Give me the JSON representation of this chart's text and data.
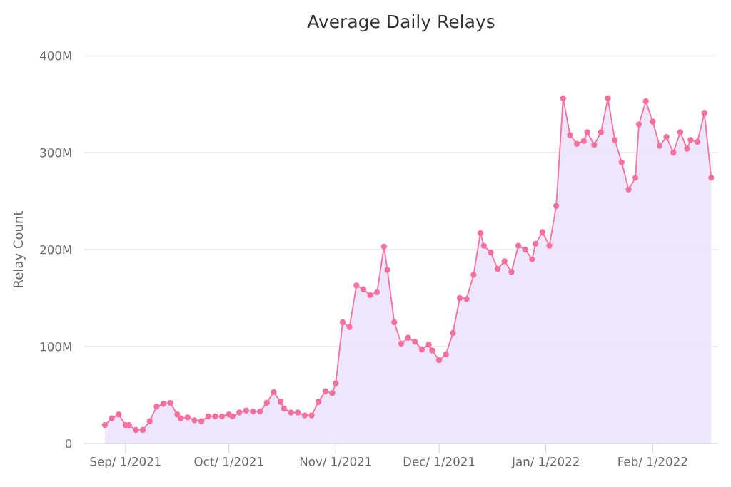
{
  "chart_data": {
    "type": "area",
    "title": "Average Daily Relays",
    "ylabel": "Relay Count",
    "x": [
      "2021-08-26",
      "2021-08-28",
      "2021-08-30",
      "2021-09-01",
      "2021-09-02",
      "2021-09-04",
      "2021-09-06",
      "2021-09-08",
      "2021-09-10",
      "2021-09-12",
      "2021-09-14",
      "2021-09-16",
      "2021-09-17",
      "2021-09-19",
      "2021-09-21",
      "2021-09-23",
      "2021-09-25",
      "2021-09-27",
      "2021-09-29",
      "2021-10-01",
      "2021-10-02",
      "2021-10-04",
      "2021-10-06",
      "2021-10-08",
      "2021-10-10",
      "2021-10-12",
      "2021-10-14",
      "2021-10-16",
      "2021-10-17",
      "2021-10-19",
      "2021-10-21",
      "2021-10-23",
      "2021-10-25",
      "2021-10-27",
      "2021-10-29",
      "2021-10-31",
      "2021-11-01",
      "2021-11-03",
      "2021-11-05",
      "2021-11-07",
      "2021-11-09",
      "2021-11-11",
      "2021-11-13",
      "2021-11-15",
      "2021-11-16",
      "2021-11-18",
      "2021-11-20",
      "2021-11-22",
      "2021-11-24",
      "2021-11-26",
      "2021-11-28",
      "2021-11-29",
      "2021-12-01",
      "2021-12-03",
      "2021-12-05",
      "2021-12-07",
      "2021-12-09",
      "2021-12-11",
      "2021-12-13",
      "2021-12-14",
      "2021-12-16",
      "2021-12-18",
      "2021-12-20",
      "2021-12-22",
      "2021-12-24",
      "2021-12-26",
      "2021-12-28",
      "2021-12-29",
      "2021-12-31",
      "2022-01-02",
      "2022-01-04",
      "2022-01-06",
      "2022-01-08",
      "2022-01-10",
      "2022-01-12",
      "2022-01-13",
      "2022-01-15",
      "2022-01-17",
      "2022-01-19",
      "2022-01-21",
      "2022-01-23",
      "2022-01-25",
      "2022-01-27",
      "2022-01-28",
      "2022-01-30",
      "2022-02-01",
      "2022-02-03",
      "2022-02-05",
      "2022-02-07",
      "2022-02-09",
      "2022-02-11",
      "2022-02-12",
      "2022-02-14",
      "2022-02-16",
      "2022-02-18"
    ],
    "series": [
      {
        "color": "#f5709f",
        "values": [
          19000000,
          26000000,
          30000000,
          19000000,
          19000000,
          14000000,
          14000000,
          23000000,
          38000000,
          41000000,
          42000000,
          30000000,
          26000000,
          27000000,
          24000000,
          23000000,
          28000000,
          28000000,
          28000000,
          30000000,
          28000000,
          32000000,
          34000000,
          33000000,
          33000000,
          42000000,
          53000000,
          43000000,
          36000000,
          32000000,
          32000000,
          29000000,
          29000000,
          43000000,
          54000000,
          52000000,
          62000000,
          125000000,
          120000000,
          163000000,
          159000000,
          153000000,
          156000000,
          203000000,
          179000000,
          125000000,
          103000000,
          109000000,
          105000000,
          97000000,
          102000000,
          96000000,
          86000000,
          92000000,
          114000000,
          150000000,
          149000000,
          174000000,
          217000000,
          204000000,
          197000000,
          180000000,
          188000000,
          177000000,
          204000000,
          200000000,
          190000000,
          206000000,
          218000000,
          204000000,
          245000000,
          356000000,
          318000000,
          309000000,
          312000000,
          321000000,
          308000000,
          321000000,
          356000000,
          313000000,
          290000000,
          262000000,
          274000000,
          329000000,
          353000000,
          332000000,
          307000000,
          316000000,
          300000000,
          321000000,
          304000000,
          313000000,
          311000000,
          341000000,
          274000000
        ]
      }
    ],
    "xlim": [
      "2021-08-20",
      "2022-02-20"
    ],
    "xticks": [
      {
        "value": "2021-09-01",
        "label": "Sep/ 1/2021"
      },
      {
        "value": "2021-10-01",
        "label": "Oct/ 1/2021"
      },
      {
        "value": "2021-11-01",
        "label": "Nov/ 1/2021"
      },
      {
        "value": "2021-12-01",
        "label": "Dec/ 1/2021"
      },
      {
        "value": "2022-01-01",
        "label": "Jan/ 1/2022"
      },
      {
        "value": "2022-02-01",
        "label": "Feb/ 1/2022"
      }
    ],
    "ylim": [
      0,
      400000000
    ],
    "yticks": [
      {
        "value": 0,
        "label": "0"
      },
      {
        "value": 100000000,
        "label": "100M"
      },
      {
        "value": 200000000,
        "label": "200M"
      },
      {
        "value": 300000000,
        "label": "300M"
      },
      {
        "value": 400000000,
        "label": "400M"
      }
    ],
    "grid": "y",
    "marker": "circle",
    "line_style": "solid"
  }
}
